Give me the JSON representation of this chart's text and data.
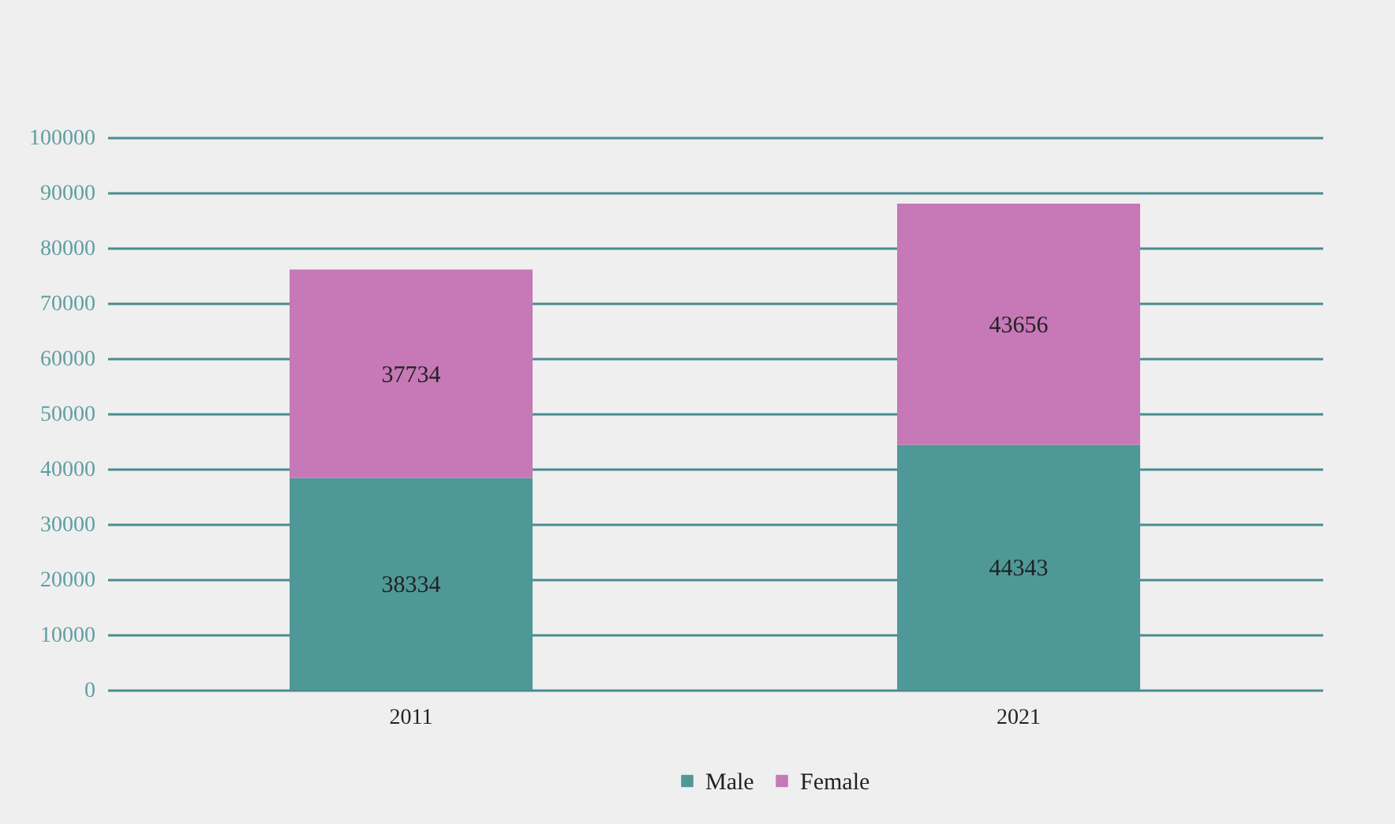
{
  "chart_data": {
    "type": "bar",
    "stacked": true,
    "categories": [
      "2011",
      "2021"
    ],
    "series": [
      {
        "name": "Male",
        "color": "#4f9898",
        "values": [
          38334,
          44343
        ]
      },
      {
        "name": "Female",
        "color": "#c778b7",
        "values": [
          37734,
          43656
        ]
      }
    ],
    "ylim": [
      0,
      100000
    ],
    "yticks": [
      0,
      10000,
      20000,
      30000,
      40000,
      50000,
      60000,
      70000,
      80000,
      90000,
      100000
    ],
    "grid": "y",
    "legend": "bottom",
    "data_labels": true
  }
}
